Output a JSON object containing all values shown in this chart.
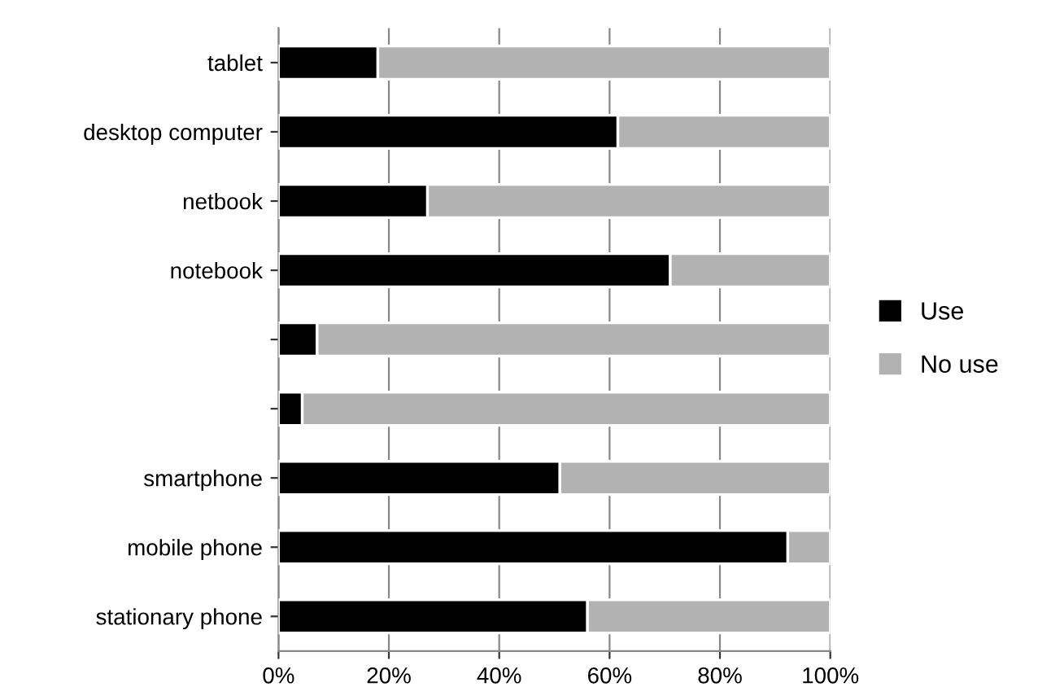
{
  "chart_data": {
    "type": "bar",
    "orientation": "horizontal",
    "stacked": true,
    "categories": [
      "tablet",
      "desktop computer",
      "netbook",
      "notebook",
      null,
      null,
      "smartphone",
      "mobile phone",
      "stationary phone"
    ],
    "series": [
      {
        "name": "Use",
        "color": "#000000",
        "values": [
          18,
          61.5,
          27,
          71,
          7,
          4.3,
          51,
          92.3,
          56
        ]
      },
      {
        "name": "No use",
        "color": "#b2b2b2",
        "values": [
          82,
          38.5,
          73,
          29,
          93,
          95.7,
          49,
          7.7,
          44
        ]
      }
    ],
    "xlim": [
      0,
      100
    ],
    "xticks": [
      {
        "value": 0,
        "label": "0%"
      },
      {
        "value": 20,
        "label": "20%"
      },
      {
        "value": 40,
        "label": "40%"
      },
      {
        "value": 60,
        "label": "60%"
      },
      {
        "value": 80,
        "label": "80%"
      },
      {
        "value": 100,
        "label": "100%"
      }
    ],
    "grid": "x",
    "legend": "right"
  }
}
